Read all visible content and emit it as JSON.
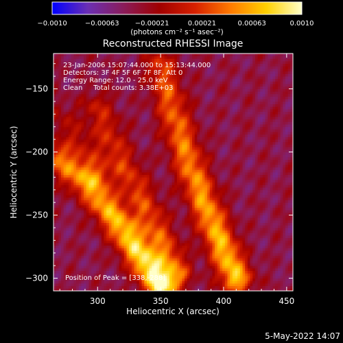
{
  "chart_data": {
    "type": "heatmap",
    "title": "Reconstructed RHESSI Image",
    "xlabel": "Heliocentric X (arcsec)",
    "ylabel": "Heliocentric Y (arcsec)",
    "xlim": [
      265,
      455
    ],
    "ylim": [
      -310,
      -122
    ],
    "x_ticks": [
      300,
      350,
      400,
      450
    ],
    "y_ticks": [
      -150,
      -200,
      -250,
      -300
    ],
    "x_tick_labels": [
      "300",
      "350",
      "400",
      "450"
    ],
    "y_tick_labels": [
      "−150",
      "−200",
      "−250",
      "−300"
    ],
    "colorbar": {
      "range": [
        -0.001,
        0.001
      ],
      "tick_labels": [
        "−0.0010",
        "−0.00063",
        "−0.00021",
        "0.00021",
        "0.00063",
        "0.0010"
      ],
      "unit_label": "(photons cm⁻² s⁻¹ asec⁻²)",
      "colormap": [
        "#0000ff",
        "#6b2fb3",
        "#8a1c5a",
        "#a00000",
        "#d62000",
        "#ff7a00",
        "#ffd000",
        "#ffffc8"
      ]
    },
    "annotations": [
      "23-Jan-2006 15:07:44.000 to 15:13:44.000",
      "Detectors: 3F 4F 5F 6F 7F 8F, Att 0",
      "Energy Range: 12.0 - 25.0 keV",
      "Clean     Total counts: 3.38E+03"
    ],
    "peak_label": "Position of Peak = [338,-288]",
    "peak_position": [
      338,
      -288
    ],
    "bright_ridges": [
      {
        "points": [
          [
            268,
            -205
          ],
          [
            295,
            -228
          ],
          [
            318,
            -258
          ],
          [
            338,
            -288
          ],
          [
            350,
            -306
          ]
        ],
        "peak_intensity": 0.001
      },
      {
        "points": [
          [
            300,
            -165
          ],
          [
            315,
            -200
          ],
          [
            332,
            -232
          ],
          [
            348,
            -265
          ],
          [
            362,
            -295
          ]
        ],
        "peak_intensity": 0.00055
      },
      {
        "points": [
          [
            350,
            -132
          ],
          [
            362,
            -175
          ],
          [
            375,
            -215
          ],
          [
            392,
            -258
          ],
          [
            410,
            -300
          ]
        ],
        "peak_intensity": 0.0008
      },
      {
        "points": [
          [
            268,
            -170
          ],
          [
            285,
            -192
          ],
          [
            300,
            -215
          ]
        ],
        "peak_intensity": 0.0003
      }
    ]
  },
  "timestamp": "5-May-2022 14:07"
}
